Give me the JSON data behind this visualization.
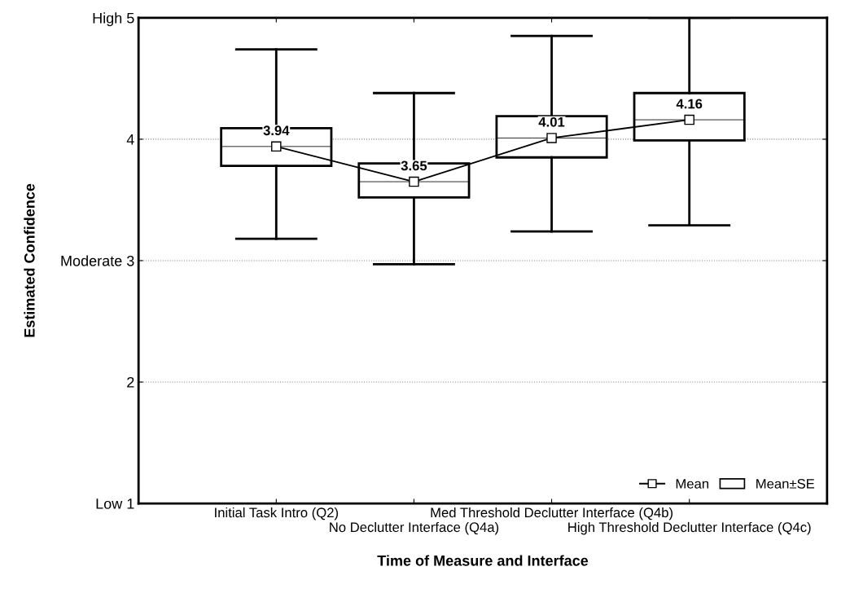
{
  "chart_data": {
    "type": "box",
    "xlabel": "Time of Measure and Interface",
    "ylabel": "Estimated Confidence",
    "categories": [
      "Initial Task Intro (Q2)",
      "No Declutter Interface (Q4a)",
      "Med Threshold Declutter Interface (Q4b)",
      "High Threshold Declutter Interface (Q4c)"
    ],
    "ylim": [
      1,
      5
    ],
    "yticks": [
      {
        "value": 1,
        "label": "Low 1"
      },
      2,
      {
        "value": 3,
        "label": "Moderate 3"
      },
      4,
      {
        "value": 5,
        "label": "High 5"
      }
    ],
    "grid": "y",
    "legend": "bottom right",
    "data_labels": true,
    "series": [
      {
        "name": "Mean",
        "type": "line",
        "color": "#000000",
        "marker": "square",
        "values": [
          3.94,
          3.65,
          4.01,
          4.16
        ]
      },
      {
        "name": "Mean±SE",
        "color": "#000000",
        "boxes": [
          {
            "low": 3.18,
            "q1": 3.78,
            "median": 3.94,
            "q3": 4.09,
            "high": 4.74
          },
          {
            "low": 2.97,
            "q1": 3.52,
            "median": 3.65,
            "q3": 3.8,
            "high": 4.38
          },
          {
            "low": 3.24,
            "q1": 3.85,
            "median": 4.01,
            "q3": 4.19,
            "high": 4.85
          },
          {
            "low": 3.29,
            "q1": 3.99,
            "median": 4.16,
            "q3": 4.38,
            "high": 5
          }
        ]
      }
    ]
  }
}
